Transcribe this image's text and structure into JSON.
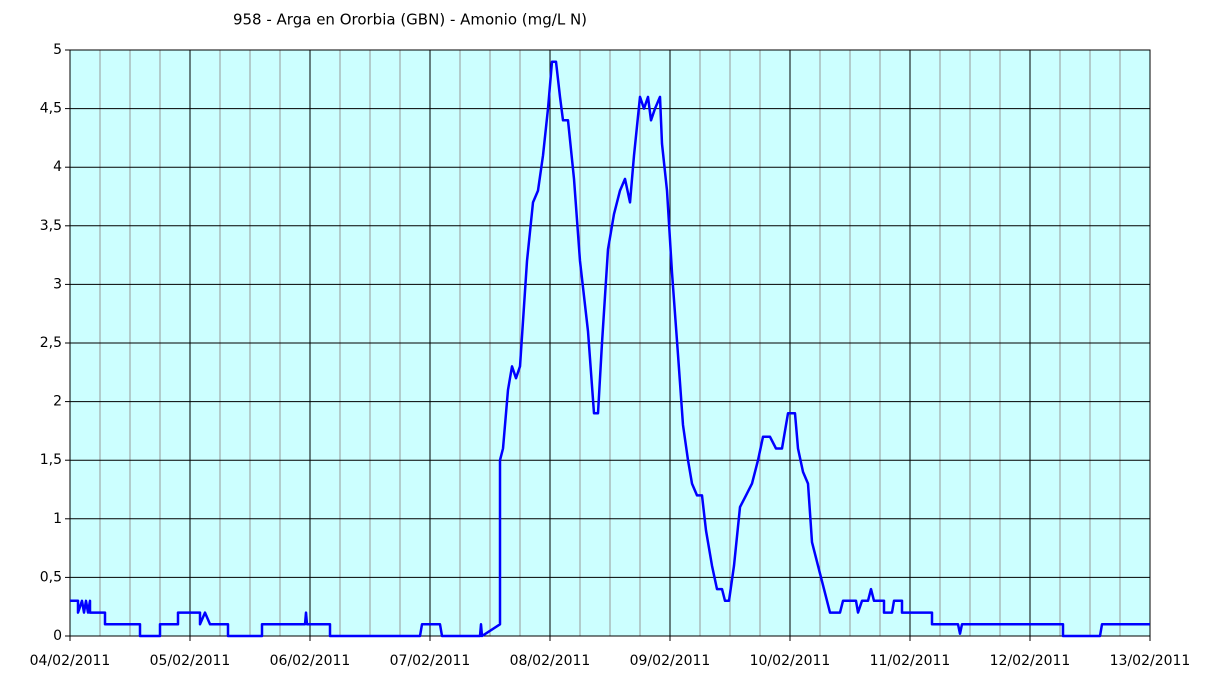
{
  "chart_data": {
    "type": "line",
    "title": "958 - Arga en Ororbia (GBN) - Amonio (mg/L N)",
    "series": [
      {
        "color": "#0000ff",
        "x": [
          0,
          0.067,
          0.067,
          0.1,
          0.117,
          0.133,
          0.15,
          0.167,
          0.167,
          0.292,
          0.292,
          0.583,
          0.583,
          0.75,
          0.75,
          0.9,
          0.9,
          1.083,
          1.083,
          1.125,
          1.167,
          1.317,
          1.317,
          1.6,
          1.6,
          1.958,
          1.967,
          1.975,
          2.167,
          2.167,
          2.917,
          2.933,
          3.083,
          3.1,
          3.417,
          3.425,
          3.433,
          3.583,
          3.583,
          3.608,
          3.65,
          3.683,
          3.717,
          3.75,
          3.808,
          3.858,
          3.9,
          3.942,
          3.983,
          4.017,
          4.05,
          4.083,
          4.108,
          4.15,
          4.2,
          4.25,
          4.317,
          4.367,
          4.4,
          4.433,
          4.483,
          4.533,
          4.583,
          4.625,
          4.667,
          4.7,
          4.75,
          4.783,
          4.817,
          4.842,
          4.875,
          4.917,
          4.933,
          4.975,
          5.017,
          5.067,
          5.108,
          5.15,
          5.183,
          5.225,
          5.267,
          5.3,
          5.35,
          5.392,
          5.433,
          5.458,
          5.492,
          5.533,
          5.583,
          5.633,
          5.683,
          5.733,
          5.775,
          5.833,
          5.883,
          5.933,
          5.983,
          6.042,
          6.067,
          6.108,
          6.15,
          6.183,
          6.233,
          6.283,
          6.333,
          6.417,
          6.442,
          6.55,
          6.567,
          6.6,
          6.65,
          6.675,
          6.7,
          6.783,
          6.783,
          6.85,
          6.867,
          6.933,
          6.933,
          7.183,
          7.183,
          7.4,
          7.417,
          7.433,
          8.275,
          8.275,
          8.583,
          8.6,
          9
        ],
        "values": [
          0.3,
          0.3,
          0.2,
          0.3,
          0.2,
          0.3,
          0.2,
          0.3,
          0.2,
          0.2,
          0.1,
          0.1,
          0,
          0,
          0.1,
          0.1,
          0.2,
          0.2,
          0.1,
          0.2,
          0.1,
          0.1,
          0,
          0,
          0.1,
          0.1,
          0.2,
          0.1,
          0.1,
          0,
          0,
          0.1,
          0.1,
          0,
          0,
          0.1,
          0,
          0.1,
          1.5,
          1.6,
          2.1,
          2.3,
          2.2,
          2.3,
          3.2,
          3.7,
          3.8,
          4.1,
          4.5,
          4.9,
          4.9,
          4.6,
          4.4,
          4.4,
          3.9,
          3.2,
          2.6,
          1.9,
          1.9,
          2.5,
          3.3,
          3.6,
          3.8,
          3.9,
          3.7,
          4.1,
          4.6,
          4.5,
          4.6,
          4.4,
          4.5,
          4.6,
          4.2,
          3.8,
          3.1,
          2.4,
          1.8,
          1.5,
          1.3,
          1.2,
          1.2,
          0.9,
          0.6,
          0.4,
          0.4,
          0.3,
          0.3,
          0.6,
          1.1,
          1.2,
          1.3,
          1.5,
          1.7,
          1.7,
          1.6,
          1.6,
          1.9,
          1.9,
          1.6,
          1.4,
          1.3,
          0.8,
          0.6,
          0.4,
          0.2,
          0.2,
          0.3,
          0.3,
          0.2,
          0.3,
          0.3,
          0.4,
          0.3,
          0.3,
          0.2,
          0.2,
          0.3,
          0.3,
          0.2,
          0.2,
          0.1,
          0.1,
          0.02,
          0.1,
          0.1,
          0,
          0,
          0.1,
          0.1
        ]
      }
    ],
    "xlim": [
      0,
      9
    ],
    "xticks": [
      {
        "value": 0,
        "label": "04/02/2011"
      },
      {
        "value": 1,
        "label": "05/02/2011"
      },
      {
        "value": 2,
        "label": "06/02/2011"
      },
      {
        "value": 3,
        "label": "07/02/2011"
      },
      {
        "value": 4,
        "label": "08/02/2011"
      },
      {
        "value": 5,
        "label": "09/02/2011"
      },
      {
        "value": 6,
        "label": "10/02/2011"
      },
      {
        "value": 7,
        "label": "11/02/2011"
      },
      {
        "value": 8,
        "label": "12/02/2011"
      },
      {
        "value": 9,
        "label": "13/02/2011"
      }
    ],
    "ylim": [
      0,
      5
    ],
    "yticks": [
      0,
      {
        "value": 0.5,
        "label": "0,5"
      },
      1,
      {
        "value": 1.5,
        "label": "1,5"
      },
      2,
      {
        "value": 2.5,
        "label": "2,5"
      },
      3,
      {
        "value": 3.5,
        "label": "3,5"
      },
      4,
      {
        "value": 4.5,
        "label": "4,5"
      },
      5
    ],
    "grid": true,
    "background": "#ccffff"
  }
}
